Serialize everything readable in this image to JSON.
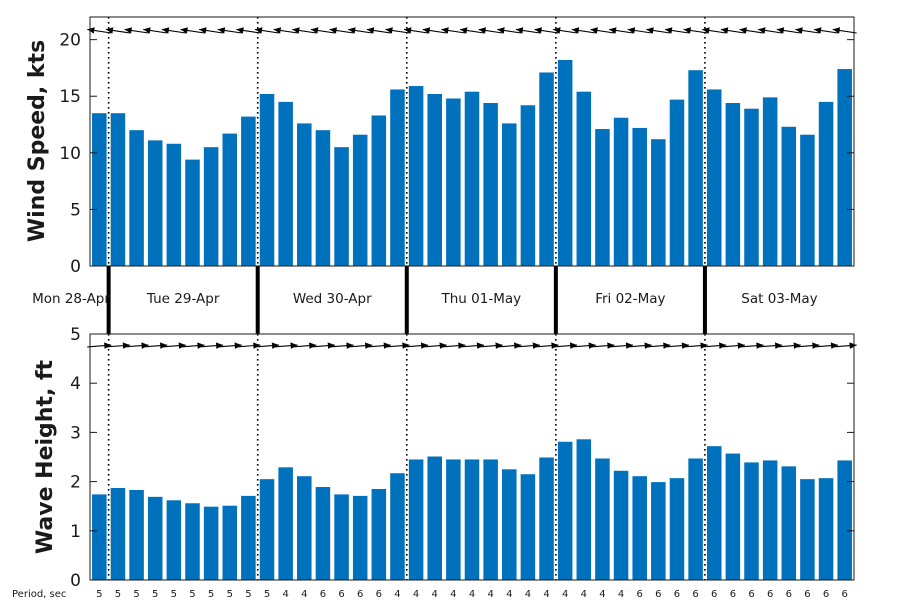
{
  "chart_data": [
    {
      "type": "bar",
      "ylabel": "Wind Speed, kts",
      "ylim": [
        0,
        22
      ],
      "yticks": [
        "0",
        "5",
        "10",
        "15",
        "20"
      ],
      "color": "#0072BD",
      "values": [
        13.5,
        13.5,
        12.0,
        11.1,
        10.8,
        9.4,
        10.5,
        11.7,
        13.2,
        15.2,
        14.5,
        12.6,
        12.0,
        10.5,
        11.6,
        13.3,
        15.6,
        15.9,
        15.2,
        14.8,
        15.4,
        14.4,
        12.6,
        14.2,
        17.1,
        18.2,
        15.4,
        12.1,
        13.1,
        12.2,
        11.2,
        14.7,
        17.3,
        15.6,
        14.4,
        13.9,
        14.9,
        12.3,
        11.6,
        14.5,
        17.4
      ],
      "direction_arrows": "pointing west (east wind), one arrow per bar"
    },
    {
      "type": "bar",
      "ylabel": "Wave Height, ft",
      "ylim": [
        0,
        5
      ],
      "yticks": [
        "0",
        "1",
        "2",
        "3",
        "4",
        "5"
      ],
      "color": "#0072BD",
      "values": [
        1.74,
        1.87,
        1.83,
        1.69,
        1.62,
        1.56,
        1.49,
        1.51,
        1.71,
        2.05,
        2.29,
        2.11,
        1.89,
        1.74,
        1.71,
        1.85,
        2.17,
        2.45,
        2.51,
        2.45,
        2.45,
        2.45,
        2.25,
        2.15,
        2.49,
        2.81,
        2.86,
        2.47,
        2.22,
        2.11,
        1.99,
        2.07,
        2.47,
        2.72,
        2.57,
        2.39,
        2.43,
        2.31,
        2.05,
        2.07,
        2.43
      ],
      "direction_arrows": "pointing east, one arrow per bar"
    }
  ],
  "days": [
    {
      "label": "Mon 28-Apr"
    },
    {
      "label": "Tue 29-Apr"
    },
    {
      "label": "Wed 30-Apr"
    },
    {
      "label": "Thu 01-May"
    },
    {
      "label": "Fri 02-May"
    },
    {
      "label": "Sat 03-May"
    }
  ],
  "period": {
    "label": "Period, sec",
    "values": [
      "5",
      "5",
      "5",
      "5",
      "5",
      "5",
      "5",
      "5",
      "5",
      "5",
      "4",
      "4",
      "6",
      "6",
      "6",
      "6",
      "4",
      "4",
      "4",
      "4",
      "4",
      "4",
      "4",
      "4",
      "4",
      "4",
      "4",
      "4",
      "4",
      "6",
      "6",
      "6",
      "6",
      "6",
      "6",
      "6",
      "6",
      "6",
      "6",
      "6",
      "6"
    ]
  }
}
